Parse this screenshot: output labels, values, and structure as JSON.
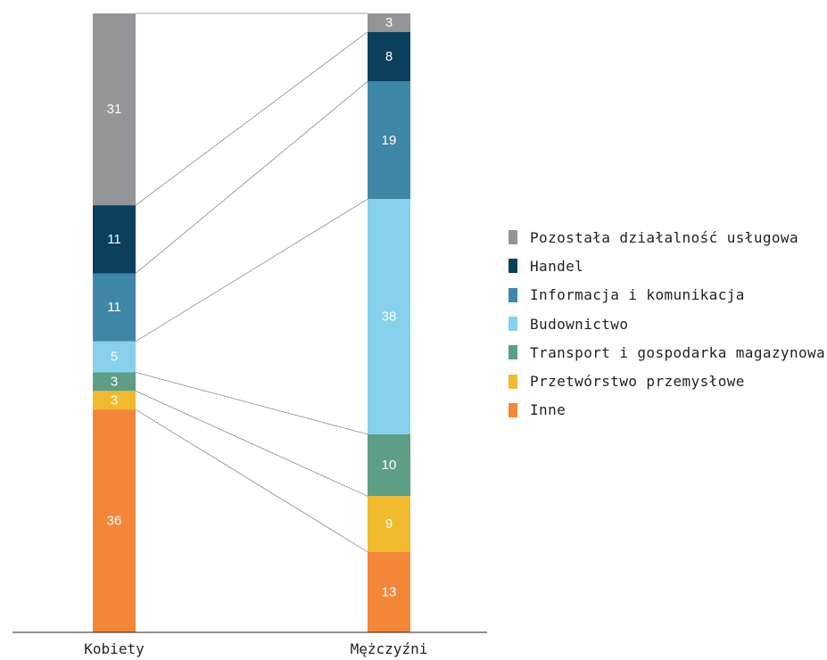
{
  "chart_data": {
    "type": "bar",
    "stacked": true,
    "categories": [
      "Kobiety",
      "Mężczyźni"
    ],
    "series": [
      {
        "name": "Pozostała działalność usługowa",
        "color": "#939598",
        "values": [
          31,
          3
        ]
      },
      {
        "name": "Handel",
        "color": "#0b3f5c",
        "values": [
          11,
          8
        ]
      },
      {
        "name": "Informacja i komunikacja",
        "color": "#3e87a6",
        "values": [
          11,
          19
        ]
      },
      {
        "name": "Budownictwo",
        "color": "#86d0ec",
        "values": [
          5,
          38
        ]
      },
      {
        "name": "Transport i gospodarka magazynowa",
        "color": "#5d9e84",
        "values": [
          3,
          10
        ]
      },
      {
        "name": "Przetwórstwo przemysłowe",
        "color": "#f0b92e",
        "values": [
          3,
          9
        ]
      },
      {
        "name": "Inne",
        "color": "#f2873a",
        "values": [
          36,
          13
        ]
      }
    ],
    "ylim": [
      0,
      100
    ],
    "legend_position": "right",
    "connectors": true,
    "grid": false
  }
}
